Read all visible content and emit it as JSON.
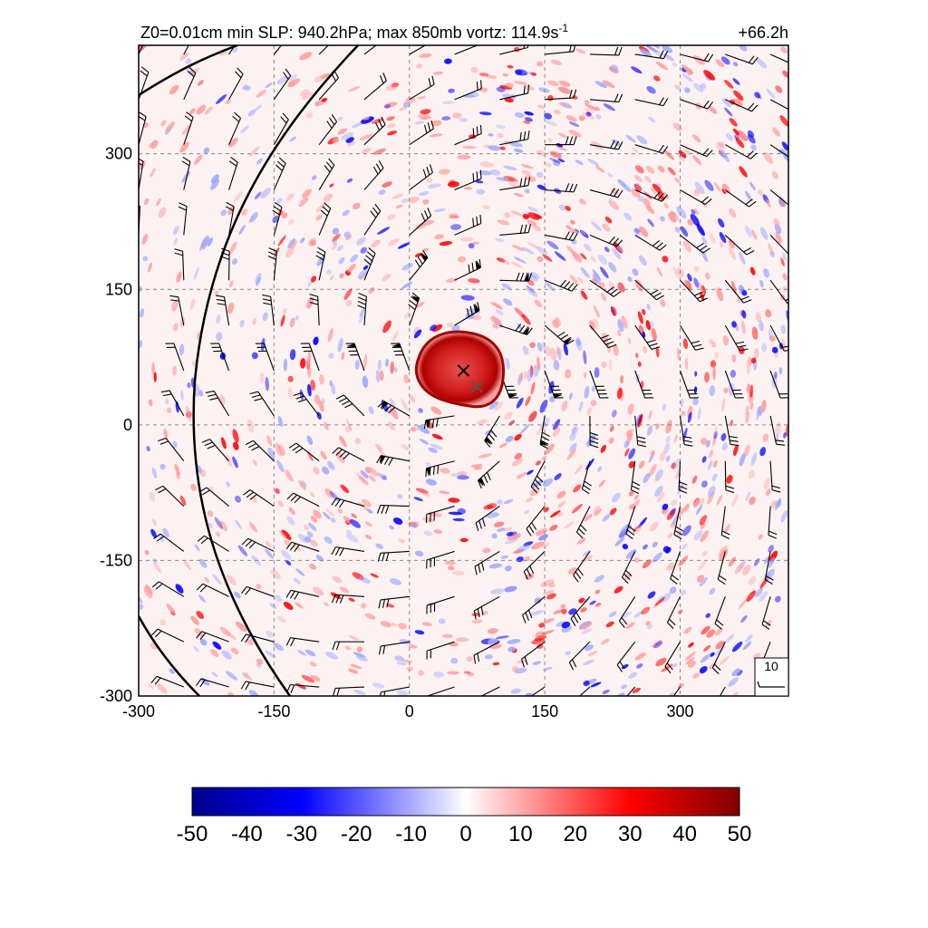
{
  "title": {
    "left_prefix": "Z0=0.01cm  min SLP: 940.2hPa; max 850mb vortz: 114.9s",
    "left_exponent": "-1",
    "right": "+66.2h"
  },
  "axes": {
    "xlim": [
      -300,
      420
    ],
    "ylim": [
      -300,
      420
    ],
    "x_ticks": [
      -300,
      -150,
      0,
      150,
      300
    ],
    "y_ticks": [
      -300,
      -150,
      0,
      150,
      300
    ],
    "x_tick_labels": [
      "-300",
      "-150",
      "0",
      "150",
      "300"
    ],
    "y_tick_labels": [
      "-300",
      "-150",
      "0",
      "150",
      "300"
    ],
    "grid": "dashed"
  },
  "field": {
    "name": "850mb relative vorticity",
    "colormap": "blue-white-red",
    "range": [
      -50,
      50
    ],
    "colors": {
      "min": "#00008b",
      "neg": "#0000ff",
      "zero": "#ffffff",
      "pos": "#ff0000",
      "max": "#800000"
    }
  },
  "centers": [
    {
      "name": "vortex-center",
      "x": 60,
      "y": 60,
      "color": "#000000"
    },
    {
      "name": "surface-center",
      "x": 75,
      "y": 42,
      "color": "#555555"
    }
  ],
  "wind_barbs": {
    "spacing": 50,
    "barb_color": "#000000",
    "reference": {
      "label": "10",
      "location": "bottom-right"
    }
  },
  "contours": [
    {
      "name": "contour-outer",
      "color": "#000000"
    },
    {
      "name": "contour-inner",
      "color": "#000000"
    }
  ],
  "colorbar": {
    "ticks": [
      -50,
      -40,
      -30,
      -20,
      -10,
      0,
      10,
      20,
      30,
      40,
      50
    ],
    "tick_labels": [
      "-50",
      "-40",
      "-30",
      "-20",
      "-10",
      "0",
      "10",
      "20",
      "30",
      "40",
      "50"
    ],
    "range": [
      -50,
      50
    ]
  }
}
